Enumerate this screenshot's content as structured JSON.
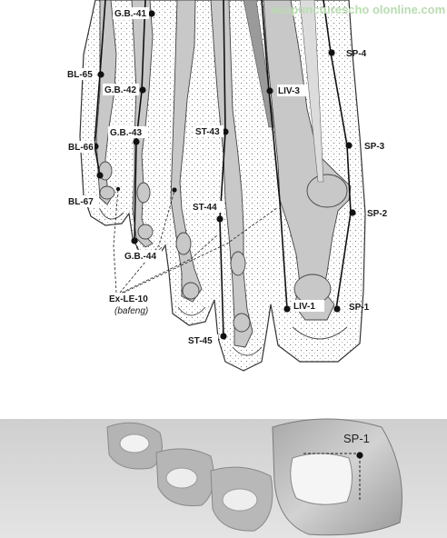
{
  "watermark": "acupuncturescho olonline.com",
  "points": [
    {
      "id": "gb41",
      "label": "G.B.-41"
    },
    {
      "id": "bl65",
      "label": "BL-65"
    },
    {
      "id": "gb42",
      "label": "G.B.-42"
    },
    {
      "id": "gb43",
      "label": "G.B.-43"
    },
    {
      "id": "bl66",
      "label": "BL-66"
    },
    {
      "id": "bl67",
      "label": "BL-67"
    },
    {
      "id": "gb44",
      "label": "G.B.-44"
    },
    {
      "id": "st43",
      "label": "ST-43"
    },
    {
      "id": "st44",
      "label": "ST-44"
    },
    {
      "id": "st45",
      "label": "ST-45"
    },
    {
      "id": "liv3",
      "label": "LIV-3"
    },
    {
      "id": "liv1",
      "label": "LIV-1"
    },
    {
      "id": "sp4",
      "label": "SP-4"
    },
    {
      "id": "sp3",
      "label": "SP-3"
    },
    {
      "id": "sp2",
      "label": "SP-2"
    },
    {
      "id": "sp1",
      "label": "SP-1"
    }
  ],
  "exle10": {
    "label": "Ex-LE-10",
    "sublabel": "(bafeng)"
  },
  "photo": {
    "label": "SP-1"
  },
  "colors": {
    "bone": "#c8c8c8",
    "outline": "#333333",
    "point": "#111111",
    "photo_bg": "#d9d9d9"
  }
}
